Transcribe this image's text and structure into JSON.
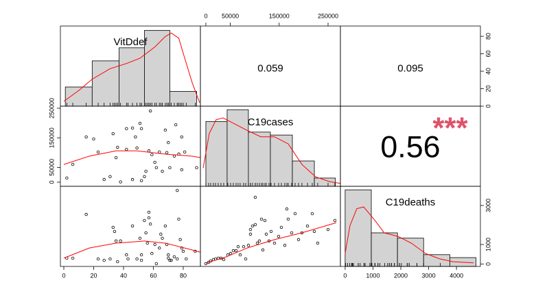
{
  "chart_data": {
    "type": "pairs",
    "line_color": "#ff0000",
    "variables": [
      {
        "name": "VitDdef",
        "xlim": [
          -2.3,
          91.5
        ],
        "ylim": [
          0,
          91.8
        ],
        "xticks": [
          0,
          20,
          40,
          60,
          80
        ],
        "yticks": [
          0,
          20,
          40,
          60,
          80
        ]
      },
      {
        "name": "C19cases",
        "xlim": [
          -11200,
          275300
        ],
        "ylim": [
          -13900,
          257000
        ],
        "xticks": [
          0,
          50000,
          150000,
          250000
        ],
        "yticks": [
          0,
          50000,
          150000,
          250000
        ]
      },
      {
        "name": "C19deaths",
        "xlim": [
          -170,
          4860
        ],
        "ylim": [
          -123,
          3982
        ],
        "xticks": [
          0,
          1000,
          2000,
          3000,
          4000
        ],
        "yticks": [
          0,
          1000,
          3000
        ]
      }
    ],
    "histograms": [
      {
        "color": "#d3d3d3",
        "bins": [
          1,
          19,
          37,
          54,
          71,
          89
        ],
        "values": [
          22,
          52,
          67,
          87,
          17
        ],
        "ylim": [
          0,
          92
        ],
        "density": {
          "x": [
            0,
            10,
            19,
            31,
            42,
            51,
            61,
            68,
            72,
            77,
            81,
            86,
            91
          ],
          "values": [
            5.5,
            18,
            31,
            43,
            49,
            55,
            68,
            80,
            84,
            78,
            55,
            27,
            4
          ]
        }
      },
      {
        "color": "#d3d3d3",
        "bins": [
          0,
          43500,
          87000,
          132000,
          177000,
          222000,
          265000
        ],
        "values": [
          11,
          13,
          9.2,
          8.7,
          4.3,
          1.4
        ],
        "ylim": [
          0,
          13.6
        ],
        "density": {
          "x": [
            -5600,
            7000,
            21100,
            35100,
            56200,
            84300,
            112400,
            140400,
            168500,
            196600,
            224700,
            252800,
            275300
          ],
          "values": [
            3.1,
            9.0,
            11.3,
            11.6,
            10.7,
            9.5,
            8.4,
            8.4,
            7.2,
            3.7,
            1.6,
            0.8,
            0.5
          ]
        }
      },
      {
        "color": "#d3d3d3",
        "bins": [
          0,
          940,
          1880,
          2820,
          3760,
          4700
        ],
        "values": [
          13,
          5.7,
          4.8,
          2,
          1.5
        ],
        "ylim": [
          0,
          13.6
        ],
        "density": {
          "x": [
            0,
            173,
            420,
            667,
            1037,
            1407,
            1901,
            2395,
            2889,
            3383,
            3877,
            4617
          ],
          "values": [
            2.2,
            6.9,
            9.8,
            10.1,
            8.0,
            5.7,
            5.1,
            3.9,
            2.2,
            1.3,
            0.8,
            0.6
          ]
        }
      }
    ],
    "scatters": [
      {
        "x": [
          2,
          6,
          15,
          20,
          23,
          27,
          31,
          33,
          35,
          36,
          38,
          42,
          42,
          46,
          46,
          48,
          49,
          51,
          52,
          52,
          54,
          55,
          57,
          58,
          59,
          61,
          62,
          64,
          66,
          68,
          69,
          70,
          71,
          74,
          75,
          77,
          79,
          79,
          81,
          89
        ],
        "values": [
          14000,
          60000,
          153000,
          146000,
          102000,
          9000,
          19000,
          164000,
          83000,
          118000,
          1000,
          111000,
          181000,
          9000,
          183000,
          153000,
          116000,
          199000,
          181000,
          5000,
          19000,
          37000,
          106000,
          241000,
          93000,
          67000,
          49000,
          102000,
          37000,
          176000,
          100000,
          134000,
          49000,
          88000,
          194000,
          95000,
          42000,
          153000,
          102000,
          49000
        ],
        "smooth": {
          "x": [
            0,
            17,
            35,
            49,
            68,
            86,
            91.5
          ],
          "values": [
            60000,
            88000,
            106000,
            106000,
            95000,
            88000,
            83000
          ]
        }
      },
      {
        "x": [
          2,
          6,
          15,
          23,
          27,
          31,
          33,
          34,
          35,
          36,
          38,
          42,
          43,
          46,
          49,
          51,
          52,
          52,
          54,
          55,
          56,
          57,
          57,
          58,
          59,
          61,
          62,
          64,
          65,
          66,
          68,
          69,
          70,
          70,
          71,
          72,
          74,
          76,
          76,
          77,
          78,
          79,
          80,
          82,
          88
        ],
        "values": [
          300,
          300,
          2540,
          260,
          190,
          260,
          1880,
          1670,
          1180,
          120,
          1180,
          470,
          260,
          1950,
          260,
          1320,
          470,
          190,
          2230,
          1600,
          1070,
          2650,
          2370,
          2050,
          540,
          1000,
          20,
          820,
          1530,
          1320,
          1950,
          1000,
          300,
          470,
          190,
          190,
          370,
          260,
          3770,
          2300,
          1250,
          820,
          650,
          260,
          650
        ],
        "smooth": {
          "x": [
            0,
            17,
            35,
            54,
            68,
            81,
            91.5
          ],
          "values": [
            300,
            820,
            1070,
            1180,
            1070,
            820,
            610
          ]
        }
      },
      {
        "x": [
          0,
          5600,
          9800,
          15400,
          19700,
          25300,
          30900,
          36500,
          44900,
          50600,
          56200,
          61800,
          66000,
          70200,
          77200,
          81500,
          87100,
          91300,
          91300,
          95500,
          101100,
          101100,
          105300,
          109600,
          113800,
          116600,
          120800,
          123600,
          129200,
          133400,
          140400,
          148900,
          154500,
          161500,
          165700,
          168500,
          175600,
          182600,
          189600,
          196600,
          207900,
          217700,
          221900,
          228900,
          250000,
          264000
        ],
        "values": [
          20,
          90,
          160,
          230,
          260,
          300,
          300,
          230,
          470,
          540,
          680,
          680,
          890,
          470,
          890,
          260,
          960,
          1770,
          1530,
          1950,
          3420,
          2020,
          1070,
          1180,
          2300,
          720,
          2230,
          1530,
          1180,
          1670,
          1070,
          1420,
          1880,
          960,
          2820,
          2300,
          1600,
          2580,
          1250,
          1600,
          1950,
          2580,
          1670,
          1070,
          1770,
          2230
        ],
        "smooth": {
          "x": [
            0,
            42100,
            84300,
            140400,
            196600,
            266900
          ],
          "values": [
            50,
            370,
            820,
            1250,
            1600,
            2120
          ]
        }
      }
    ],
    "correlations": [
      {
        "value": 0.059
      },
      {
        "value": 0.095
      },
      {
        "value": 0.56,
        "stars": "***",
        "stars_color": "#df536b"
      }
    ]
  }
}
